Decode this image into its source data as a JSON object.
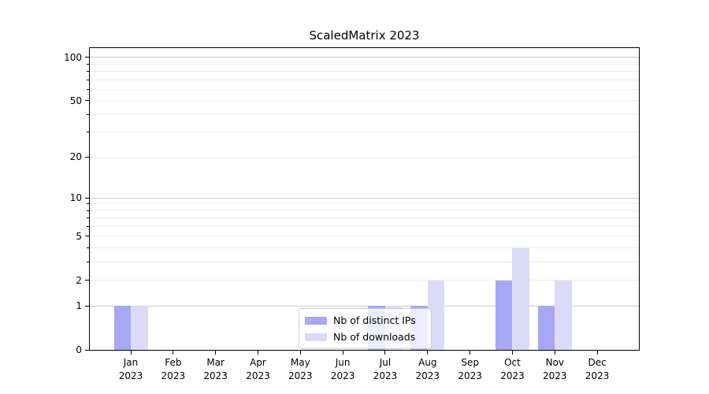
{
  "title": "ScaledMatrix 2023",
  "chart_data": {
    "type": "bar",
    "title": "ScaledMatrix 2023",
    "categories": [
      "Jan 2023",
      "Feb 2023",
      "Mar 2023",
      "Apr 2023",
      "May 2023",
      "Jun 2023",
      "Jul 2023",
      "Aug 2023",
      "Sep 2023",
      "Oct 2023",
      "Nov 2023",
      "Dec 2023"
    ],
    "series": [
      {
        "name": "Nb of distinct IPs",
        "color": "#a7a7f6",
        "values": [
          1,
          0,
          0,
          0,
          0,
          0,
          1,
          1,
          0,
          2,
          1,
          0
        ]
      },
      {
        "name": "Nb of downloads",
        "color": "#dbdbf8",
        "values": [
          1,
          0,
          0,
          0,
          0,
          0,
          1,
          2,
          0,
          4,
          2,
          0
        ]
      }
    ],
    "yscale": "log1p",
    "ylim": [
      0,
      116
    ],
    "y_major_ticks": [
      0,
      1,
      2,
      5,
      10,
      20,
      50,
      100
    ],
    "y_decade_ticks": [
      1,
      10,
      100
    ],
    "y_minor_ticks": [
      3,
      4,
      6,
      7,
      8,
      9,
      30,
      40,
      60,
      70,
      80,
      90
    ],
    "xlabel": "",
    "ylabel": "",
    "grid": true,
    "legend_position": "lower center"
  },
  "legend": {
    "items": [
      {
        "label": "Nb of distinct IPs",
        "color": "#a7a7f6"
      },
      {
        "label": "Nb of downloads",
        "color": "#dbdbf8"
      }
    ]
  },
  "colors": {
    "grid_decade": "#c9c9c9",
    "grid_minor": "#ececec",
    "spine": "#000000",
    "text": "#000000",
    "legend_border": "#cccccc"
  }
}
